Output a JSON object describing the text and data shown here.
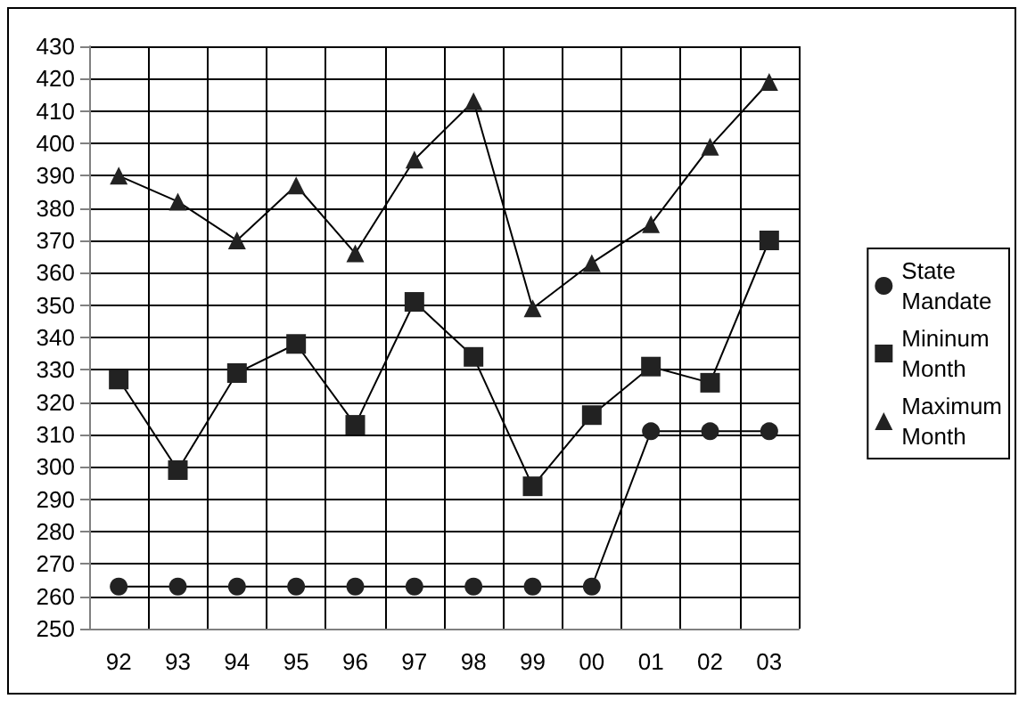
{
  "chart_data": {
    "type": "line",
    "categories": [
      "92",
      "93",
      "94",
      "95",
      "96",
      "97",
      "98",
      "99",
      "00",
      "01",
      "02",
      "03"
    ],
    "series": [
      {
        "name": "State Mandate",
        "color": "#222222",
        "marker": "circle",
        "values": [
          263,
          263,
          263,
          263,
          263,
          263,
          263,
          263,
          263,
          311,
          311,
          311
        ]
      },
      {
        "name": "Mininum Month",
        "color": "#222222",
        "marker": "square",
        "values": [
          327,
          299,
          329,
          338,
          313,
          351,
          334,
          294,
          316,
          331,
          326,
          370
        ]
      },
      {
        "name": "Maximum Month",
        "color": "#222222",
        "marker": "triangle",
        "values": [
          390,
          382,
          370,
          387,
          366,
          395,
          413,
          349,
          363,
          375,
          399,
          419
        ]
      }
    ],
    "ylim": [
      250,
      430
    ],
    "yticks": [
      250,
      260,
      270,
      280,
      290,
      300,
      310,
      320,
      330,
      340,
      350,
      360,
      370,
      380,
      390,
      400,
      410,
      420,
      430
    ],
    "grid": true,
    "legend": "right",
    "line_style": "solid"
  }
}
